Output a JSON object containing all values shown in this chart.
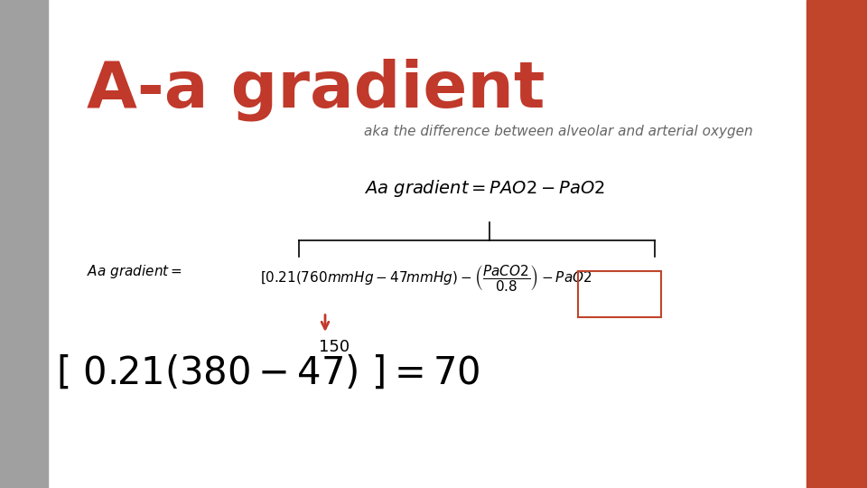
{
  "title": "A-a gradient",
  "subtitle": "aka the difference between alveolar and arterial oxygen",
  "title_color": "#c0392b",
  "subtitle_color": "#666666",
  "bg_color": "#ffffff",
  "left_bar_color": "#a0a0a0",
  "right_bar_color": "#c0452b",
  "left_bar_width": 0.055,
  "right_bar_width": 0.07,
  "annotation_150": "150",
  "arrow_color": "#c0392b"
}
